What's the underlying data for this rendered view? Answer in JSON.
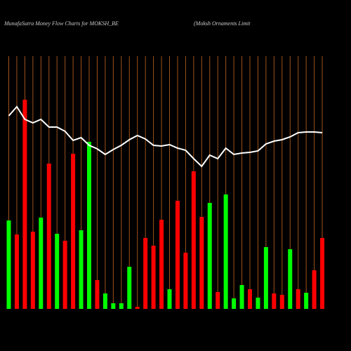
{
  "chart_data": {
    "type": "bar",
    "title": "MunafaSutra  Money Flow  Charts for MOKSH_BE",
    "subtitle": "(Moksh Ornaments Limit",
    "grid": true,
    "grid_color": "#a0521c",
    "ylim": [
      0,
      360
    ],
    "bars": {
      "values": [
        126,
        106,
        298,
        110,
        130,
        207,
        107,
        97,
        221,
        112,
        238,
        41,
        22,
        8,
        8,
        60,
        3,
        101,
        90,
        127,
        28,
        154,
        80,
        196,
        131,
        151,
        24,
        163,
        15,
        34,
        28,
        16,
        88,
        22,
        20,
        85,
        28,
        23,
        55,
        101
      ],
      "colors": [
        "#00ff00",
        "#ff0000",
        "#ff0000",
        "#ff0000",
        "#00ff00",
        "#ff0000",
        "#00ff00",
        "#ff0000",
        "#ff0000",
        "#00ff00",
        "#00ff00",
        "#ff0000",
        "#00ff00",
        "#00ff00",
        "#00ff00",
        "#00ff00",
        "#ff0000",
        "#ff0000",
        "#ff0000",
        "#ff0000",
        "#00ff00",
        "#ff0000",
        "#ff0000",
        "#ff0000",
        "#ff0000",
        "#00ff00",
        "#ff0000",
        "#00ff00",
        "#00ff00",
        "#00ff00",
        "#ff0000",
        "#00ff00",
        "#00ff00",
        "#ff0000",
        "#ff0000",
        "#00ff00",
        "#ff0000",
        "#00ff00",
        "#ff0000",
        "#ff0000"
      ]
    },
    "line": {
      "color": "#ffffff",
      "values": [
        275,
        288,
        270,
        265,
        270,
        259,
        259,
        253,
        240,
        244,
        233,
        228,
        220,
        227,
        233,
        241,
        247,
        242,
        233,
        232,
        234,
        229,
        226,
        214,
        203,
        219,
        214,
        229,
        220,
        222,
        223,
        225,
        235,
        239,
        241,
        245,
        251,
        252,
        252,
        251
      ]
    }
  }
}
